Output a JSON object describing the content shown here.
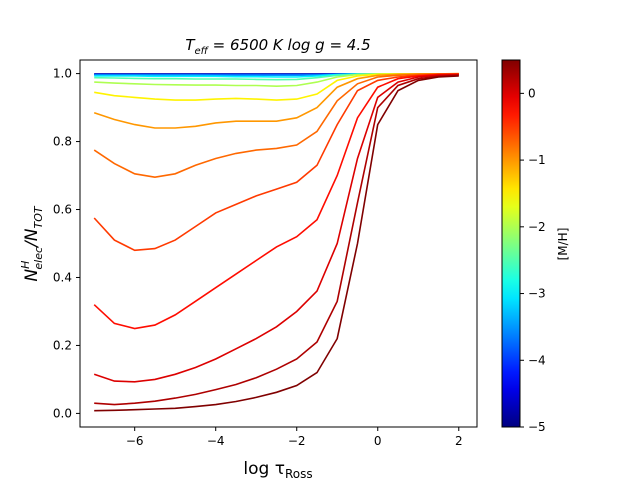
{
  "chart_data": {
    "type": "line",
    "title": {
      "main": "T",
      "sub": "eff",
      "rest": " = 6500 K    log g = 4.5"
    },
    "xlabel": {
      "main": "log τ",
      "sub": "Ross"
    },
    "ylabel": {
      "main": "N",
      "sup": "H",
      "sub": "elec",
      "mid": "/N",
      "sub2": "TOT"
    },
    "xlim": [
      -7.35,
      2.45
    ],
    "ylim": [
      -0.04,
      1.04
    ],
    "xticks": [
      -6,
      -4,
      -2,
      0,
      2
    ],
    "xtick_labels": [
      "−6",
      "−4",
      "−2",
      "0",
      "2"
    ],
    "yticks": [
      0.0,
      0.2,
      0.4,
      0.6,
      0.8,
      1.0
    ],
    "ytick_labels": [
      "0.0",
      "0.2",
      "0.4",
      "0.6",
      "0.8",
      "1.0"
    ],
    "colorbar": {
      "label": "[M/H]",
      "range": [
        -5,
        0.5
      ],
      "ticks": [
        0,
        -1,
        -2,
        -3,
        -4,
        -5
      ],
      "tick_labels": [
        "0",
        "−1",
        "−2",
        "−3",
        "−4",
        "−5"
      ],
      "colormap": "jet"
    },
    "x": [
      -7,
      -6.5,
      -6,
      -5.5,
      -5,
      -4.5,
      -4,
      -3.5,
      -3,
      -2.5,
      -2,
      -1.5,
      -1,
      -0.5,
      0,
      0.5,
      1,
      1.5,
      2
    ],
    "series": [
      {
        "name": "-5.0",
        "mh": -5.0,
        "values": [
          0.999,
          0.999,
          0.999,
          0.999,
          0.999,
          0.999,
          0.999,
          0.999,
          0.999,
          0.999,
          0.999,
          0.999,
          0.999,
          0.999,
          0.999,
          0.999,
          0.999,
          0.999,
          0.999
        ]
      },
      {
        "name": "-4.5",
        "mh": -4.5,
        "values": [
          0.998,
          0.998,
          0.998,
          0.998,
          0.998,
          0.998,
          0.998,
          0.998,
          0.998,
          0.998,
          0.998,
          0.998,
          0.999,
          0.999,
          0.999,
          0.999,
          0.999,
          0.999,
          0.999
        ]
      },
      {
        "name": "-4.0",
        "mh": -4.0,
        "values": [
          0.997,
          0.997,
          0.997,
          0.997,
          0.997,
          0.997,
          0.997,
          0.997,
          0.997,
          0.997,
          0.997,
          0.997,
          0.998,
          0.999,
          0.999,
          0.999,
          0.999,
          0.999,
          0.999
        ]
      },
      {
        "name": "-3.5",
        "mh": -3.5,
        "values": [
          0.996,
          0.996,
          0.996,
          0.996,
          0.996,
          0.996,
          0.995,
          0.995,
          0.995,
          0.995,
          0.995,
          0.996,
          0.998,
          0.999,
          0.999,
          0.999,
          0.999,
          0.999,
          0.999
        ]
      },
      {
        "name": "-3.0",
        "mh": -3.0,
        "values": [
          0.993,
          0.993,
          0.993,
          0.992,
          0.992,
          0.992,
          0.992,
          0.991,
          0.991,
          0.99,
          0.99,
          0.993,
          0.997,
          0.999,
          0.999,
          0.999,
          0.999,
          0.999,
          0.999
        ]
      },
      {
        "name": "-2.5",
        "mh": -2.5,
        "values": [
          0.988,
          0.987,
          0.986,
          0.985,
          0.985,
          0.984,
          0.984,
          0.984,
          0.983,
          0.982,
          0.983,
          0.988,
          0.995,
          0.998,
          0.999,
          0.999,
          0.999,
          0.999,
          0.999
        ]
      },
      {
        "name": "-2.0",
        "mh": -2.0,
        "values": [
          0.975,
          0.972,
          0.97,
          0.968,
          0.967,
          0.966,
          0.966,
          0.965,
          0.965,
          0.963,
          0.965,
          0.975,
          0.99,
          0.997,
          0.999,
          0.999,
          0.999,
          0.999,
          0.999
        ]
      },
      {
        "name": "-1.5",
        "mh": -1.5,
        "values": [
          0.945,
          0.935,
          0.93,
          0.925,
          0.922,
          0.922,
          0.925,
          0.927,
          0.925,
          0.922,
          0.925,
          0.94,
          0.98,
          0.993,
          0.998,
          0.999,
          0.999,
          0.999,
          0.999
        ]
      },
      {
        "name": "-1.0",
        "mh": -1.0,
        "values": [
          0.885,
          0.865,
          0.85,
          0.84,
          0.84,
          0.845,
          0.855,
          0.86,
          0.86,
          0.86,
          0.87,
          0.9,
          0.96,
          0.985,
          0.995,
          0.998,
          0.999,
          0.999,
          1.0
        ]
      },
      {
        "name": "-0.75",
        "mh": -0.75,
        "values": [
          0.775,
          0.735,
          0.705,
          0.695,
          0.705,
          0.73,
          0.75,
          0.765,
          0.775,
          0.78,
          0.79,
          0.83,
          0.92,
          0.97,
          0.99,
          0.995,
          0.998,
          0.999,
          0.999
        ]
      },
      {
        "name": "-0.5",
        "mh": -0.5,
        "values": [
          0.575,
          0.51,
          0.48,
          0.485,
          0.51,
          0.55,
          0.59,
          0.615,
          0.64,
          0.66,
          0.68,
          0.73,
          0.85,
          0.95,
          0.98,
          0.99,
          0.995,
          0.998,
          0.999
        ]
      },
      {
        "name": "-0.25",
        "mh": -0.25,
        "values": [
          0.32,
          0.265,
          0.25,
          0.26,
          0.29,
          0.33,
          0.37,
          0.41,
          0.45,
          0.49,
          0.52,
          0.57,
          0.7,
          0.87,
          0.96,
          0.985,
          0.993,
          0.997,
          0.998
        ]
      },
      {
        "name": "0.0",
        "mh": 0.0,
        "values": [
          0.115,
          0.095,
          0.093,
          0.1,
          0.115,
          0.135,
          0.16,
          0.19,
          0.22,
          0.255,
          0.3,
          0.36,
          0.5,
          0.75,
          0.93,
          0.975,
          0.99,
          0.995,
          0.997
        ]
      },
      {
        "name": "0.25",
        "mh": 0.25,
        "values": [
          0.03,
          0.026,
          0.03,
          0.036,
          0.045,
          0.056,
          0.07,
          0.085,
          0.105,
          0.13,
          0.16,
          0.21,
          0.33,
          0.62,
          0.9,
          0.965,
          0.985,
          0.992,
          0.995
        ]
      },
      {
        "name": "0.5",
        "mh": 0.5,
        "values": [
          0.008,
          0.009,
          0.011,
          0.013,
          0.015,
          0.02,
          0.026,
          0.035,
          0.047,
          0.062,
          0.082,
          0.12,
          0.22,
          0.5,
          0.85,
          0.95,
          0.98,
          0.99,
          0.993
        ]
      }
    ]
  }
}
